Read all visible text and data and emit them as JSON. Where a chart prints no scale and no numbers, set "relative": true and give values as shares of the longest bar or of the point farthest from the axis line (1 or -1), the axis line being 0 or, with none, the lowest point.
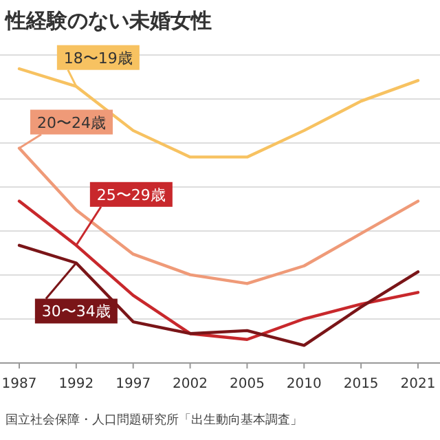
{
  "chart_data": {
    "type": "line",
    "title": "性経験のない未婚女性",
    "relative": true,
    "grid": "y",
    "marker": "none",
    "line_style": "solid",
    "categories": [
      "1987",
      "1992",
      "1997",
      "2002",
      "2005",
      "2010",
      "2015",
      "2021"
    ],
    "series": [
      {
        "name": "18〜19歳",
        "color": "#f7c261",
        "values": [
          1,
          0.94,
          0.79,
          0.7,
          0.7,
          0.79,
          0.89,
          0.96
        ]
      },
      {
        "name": "20〜24歳",
        "color": "#ef9a78",
        "values": [
          0.73,
          0.52,
          0.37,
          0.3,
          0.27,
          0.33,
          0.44,
          0.55
        ]
      },
      {
        "name": "25〜29歳",
        "color": "#c8282c",
        "values": [
          0.55,
          0.4,
          0.23,
          0.1,
          0.08,
          0.15,
          0.2,
          0.24
        ]
      },
      {
        "name": "30〜34歳",
        "color": "#7a1518",
        "values": [
          0.4,
          0.34,
          0.14,
          0.1,
          0.11,
          0.06,
          0.19,
          0.31
        ]
      }
    ],
    "annotations": [
      "国立社会保障・人口問題研究所「出生動向基本調査」"
    ]
  }
}
